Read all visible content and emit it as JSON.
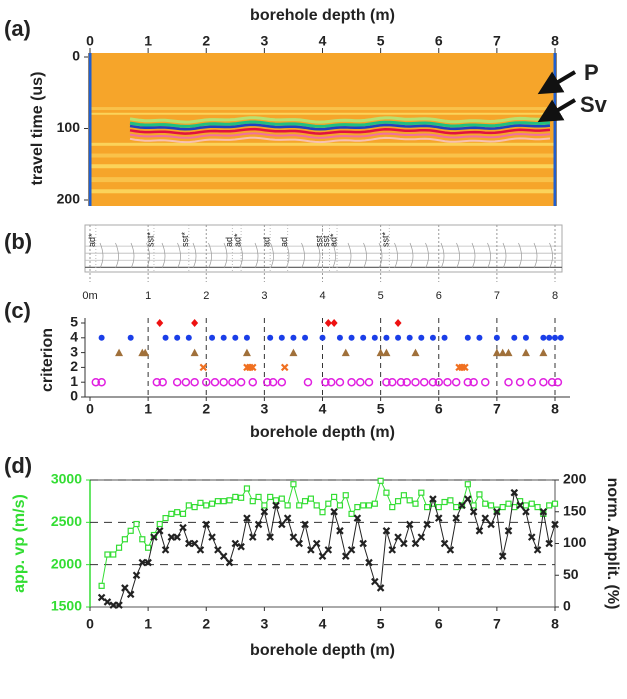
{
  "chart_data": [
    {
      "type": "image",
      "panel_label": "(a)",
      "xlabel": "borehole depth (m)",
      "ylabel": "travel time (us)",
      "xlim": [
        0,
        8
      ],
      "xticks": [
        0,
        1,
        2,
        3,
        4,
        5,
        6,
        7,
        8
      ],
      "ylim": [
        200,
        0
      ],
      "yticks": [
        0,
        100,
        200
      ],
      "annotations": [
        "P",
        "Sv"
      ]
    },
    {
      "type": "log",
      "panel_label": "(b)",
      "xlim": [
        0,
        8
      ],
      "xticks": [
        {
          "value": 0,
          "label": "0m"
        },
        1,
        2,
        3,
        4,
        5,
        6,
        7,
        8
      ],
      "annotations": [
        {
          "text": "ad*",
          "x": 0.1
        },
        {
          "text": "sst*",
          "x": 1.1
        },
        {
          "text": "sst*",
          "x": 1.7
        },
        {
          "text": "ad",
          "x": 2.45
        },
        {
          "text": "ad*",
          "x": 2.6
        },
        {
          "text": "ad",
          "x": 3.1
        },
        {
          "text": "ad",
          "x": 3.4
        },
        {
          "text": "sst",
          "x": 4.0
        },
        {
          "text": "sst",
          "x": 4.12
        },
        {
          "text": "ad*",
          "x": 4.25
        },
        {
          "text": "sst*",
          "x": 5.15
        }
      ]
    },
    {
      "type": "scatter",
      "panel_label": "(c)",
      "xlabel": "borehole depth (m)",
      "ylabel": "criterion",
      "xlim": [
        0,
        8
      ],
      "xticks": [
        0,
        1,
        2,
        3,
        4,
        5,
        6,
        7,
        8
      ],
      "ylim": [
        0,
        5
      ],
      "yticks": [
        0,
        1,
        2,
        3,
        4,
        5
      ],
      "grid": true,
      "series": [
        {
          "color": "#ee1111",
          "marker": "diamond",
          "x": [
            1.2,
            1.8,
            4.1,
            4.2,
            5.3
          ],
          "values": [
            5,
            5,
            5,
            5,
            5
          ]
        },
        {
          "color": "#1a3ee8",
          "marker": "dot",
          "x": [
            0.2,
            0.7,
            1.3,
            1.5,
            1.7,
            2.1,
            2.3,
            2.5,
            2.7,
            3.1,
            3.3,
            3.5,
            3.7,
            4.0,
            4.3,
            4.5,
            4.7,
            4.9,
            5.1,
            5.3,
            5.5,
            5.7,
            5.9,
            6.1,
            6.5,
            6.7,
            7.0,
            7.3,
            7.5,
            7.8,
            7.9,
            8.0,
            8.1
          ],
          "values": [
            4,
            4,
            4,
            4,
            4,
            4,
            4,
            4,
            4,
            4,
            4,
            4,
            4,
            4,
            4,
            4,
            4,
            4,
            4,
            4,
            4,
            4,
            4,
            4,
            4,
            4,
            4,
            4,
            4,
            4,
            4,
            4,
            4
          ]
        },
        {
          "color": "#a0703a",
          "marker": "triangle",
          "x": [
            0.5,
            0.9,
            0.95,
            1.8,
            2.7,
            3.5,
            4.4,
            5.0,
            5.1,
            5.6,
            7.0,
            7.1,
            7.2,
            7.5,
            7.8
          ],
          "values": [
            3,
            3,
            3,
            3,
            3,
            3,
            3,
            3,
            3,
            3,
            3,
            3,
            3,
            3,
            3
          ]
        },
        {
          "color": "#f07020",
          "marker": "x",
          "x": [
            1.95,
            2.7,
            2.75,
            2.8,
            3.35,
            6.35,
            6.4,
            6.45
          ],
          "values": [
            2,
            2,
            2,
            2,
            2,
            2,
            2,
            2
          ]
        },
        {
          "color": "#e020e0",
          "marker": "circle",
          "x": [
            0.1,
            0.2,
            1.15,
            1.25,
            1.5,
            1.65,
            1.8,
            2.0,
            2.15,
            2.3,
            2.45,
            2.6,
            2.8,
            3.05,
            3.15,
            3.3,
            3.75,
            4.05,
            4.15,
            4.3,
            4.5,
            4.65,
            4.8,
            5.1,
            5.2,
            5.35,
            5.45,
            5.6,
            5.75,
            5.9,
            6.0,
            6.15,
            6.3,
            6.5,
            6.6,
            6.8,
            7.2,
            7.4,
            7.6,
            7.8,
            7.95,
            8.05
          ],
          "values": [
            1,
            1,
            1,
            1,
            1,
            1,
            1,
            1,
            1,
            1,
            1,
            1,
            1,
            1,
            1,
            1,
            1,
            1,
            1,
            1,
            1,
            1,
            1,
            1,
            1,
            1,
            1,
            1,
            1,
            1,
            1,
            1,
            1,
            1,
            1,
            1,
            1,
            1,
            1,
            1,
            1,
            1
          ]
        }
      ]
    },
    {
      "type": "line",
      "panel_label": "(d)",
      "xlabel": "borehole depth (m)",
      "ylabel": "app. vp (m/s)",
      "y2label": "norm. Amplit. (%)",
      "xlim": [
        0,
        8
      ],
      "xticks": [
        0,
        1,
        2,
        3,
        4,
        5,
        6,
        7,
        8
      ],
      "ylim": [
        1500,
        3000
      ],
      "yticks": [
        1500,
        2000,
        2500,
        3000
      ],
      "y2lim": [
        0,
        200
      ],
      "y2ticks": [
        0,
        50,
        100,
        150,
        200
      ],
      "grid": true,
      "x": [
        0.2,
        0.3,
        0.4,
        0.5,
        0.6,
        0.7,
        0.8,
        0.9,
        1.0,
        1.1,
        1.2,
        1.3,
        1.4,
        1.5,
        1.6,
        1.7,
        1.8,
        1.9,
        2.0,
        2.1,
        2.2,
        2.3,
        2.4,
        2.5,
        2.6,
        2.7,
        2.8,
        2.9,
        3.0,
        3.1,
        3.2,
        3.3,
        3.4,
        3.5,
        3.6,
        3.7,
        3.8,
        3.9,
        4.0,
        4.1,
        4.2,
        4.3,
        4.4,
        4.5,
        4.6,
        4.7,
        4.8,
        4.9,
        5.0,
        5.1,
        5.2,
        5.3,
        5.4,
        5.5,
        5.6,
        5.7,
        5.8,
        5.9,
        6.0,
        6.1,
        6.2,
        6.3,
        6.4,
        6.5,
        6.6,
        6.7,
        6.8,
        6.9,
        7.0,
        7.1,
        7.2,
        7.3,
        7.4,
        7.5,
        7.6,
        7.7,
        7.8,
        7.9,
        8.0
      ],
      "series": [
        {
          "color": "#33dd33",
          "marker": "square",
          "axis": "y",
          "values": [
            1750,
            2120,
            2120,
            2200,
            2300,
            2400,
            2480,
            2300,
            2200,
            2350,
            2480,
            2550,
            2600,
            2620,
            2600,
            2700,
            2680,
            2730,
            2700,
            2720,
            2750,
            2750,
            2760,
            2800,
            2790,
            2900,
            2750,
            2800,
            2700,
            2800,
            2760,
            2780,
            2700,
            2950,
            2700,
            2750,
            2780,
            2700,
            2620,
            2720,
            2800,
            2700,
            2820,
            2600,
            2680,
            2700,
            2700,
            2720,
            2990,
            2850,
            2680,
            2750,
            2820,
            2760,
            2720,
            2850,
            2680,
            2720,
            2680,
            2740,
            2760,
            2680,
            2700,
            2950,
            2700,
            2830,
            2720,
            2700,
            2650,
            2680,
            2720,
            2680,
            2750,
            2700,
            2720,
            2680,
            2600,
            2700,
            2720
          ]
        },
        {
          "color": "#222222",
          "marker": "x",
          "axis": "y2",
          "values": [
            15,
            8,
            3,
            3,
            30,
            20,
            50,
            70,
            70,
            110,
            120,
            90,
            110,
            110,
            125,
            100,
            100,
            90,
            130,
            110,
            90,
            80,
            70,
            100,
            95,
            140,
            110,
            130,
            150,
            110,
            160,
            130,
            140,
            110,
            100,
            130,
            90,
            100,
            80,
            90,
            150,
            120,
            80,
            90,
            140,
            100,
            70,
            40,
            30,
            120,
            90,
            110,
            100,
            130,
            100,
            110,
            130,
            170,
            140,
            100,
            90,
            140,
            160,
            170,
            150,
            120,
            140,
            130,
            150,
            80,
            120,
            180,
            160,
            150,
            110,
            90,
            150,
            100,
            130
          ]
        }
      ]
    }
  ]
}
